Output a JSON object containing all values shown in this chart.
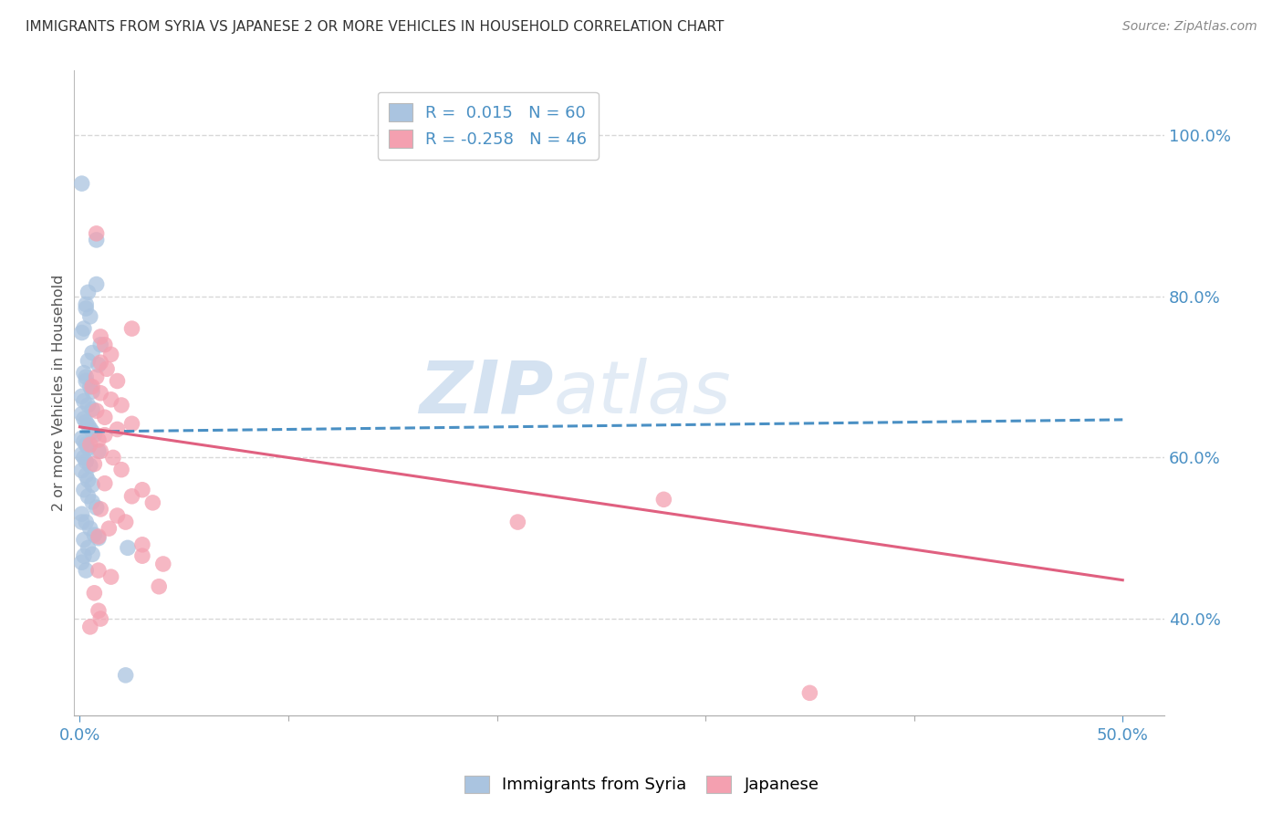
{
  "title": "IMMIGRANTS FROM SYRIA VS JAPANESE 2 OR MORE VEHICLES IN HOUSEHOLD CORRELATION CHART",
  "source": "Source: ZipAtlas.com",
  "ylabel": "2 or more Vehicles in Household",
  "y_ticks": [
    0.4,
    0.6,
    0.8,
    1.0
  ],
  "y_tick_labels": [
    "40.0%",
    "60.0%",
    "80.0%",
    "100.0%"
  ],
  "xlim": [
    -0.003,
    0.52
  ],
  "ylim": [
    0.28,
    1.08
  ],
  "blue_R": 0.015,
  "blue_N": 60,
  "pink_R": -0.258,
  "pink_N": 46,
  "legend_label_blue": "Immigrants from Syria",
  "legend_label_pink": "Japanese",
  "blue_color": "#aac4e0",
  "pink_color": "#f4a0b0",
  "blue_line_color": "#4a90c4",
  "pink_line_color": "#e06080",
  "blue_scatter": [
    [
      0.001,
      0.94
    ],
    [
      0.008,
      0.87
    ],
    [
      0.008,
      0.815
    ],
    [
      0.004,
      0.805
    ],
    [
      0.003,
      0.79
    ],
    [
      0.003,
      0.785
    ],
    [
      0.005,
      0.775
    ],
    [
      0.002,
      0.76
    ],
    [
      0.001,
      0.755
    ],
    [
      0.01,
      0.74
    ],
    [
      0.006,
      0.73
    ],
    [
      0.004,
      0.72
    ],
    [
      0.009,
      0.715
    ],
    [
      0.002,
      0.705
    ],
    [
      0.003,
      0.7
    ],
    [
      0.003,
      0.695
    ],
    [
      0.005,
      0.688
    ],
    [
      0.006,
      0.682
    ],
    [
      0.001,
      0.676
    ],
    [
      0.002,
      0.67
    ],
    [
      0.004,
      0.665
    ],
    [
      0.006,
      0.66
    ],
    [
      0.001,
      0.654
    ],
    [
      0.002,
      0.648
    ],
    [
      0.003,
      0.644
    ],
    [
      0.004,
      0.64
    ],
    [
      0.005,
      0.636
    ],
    [
      0.006,
      0.632
    ],
    [
      0.007,
      0.628
    ],
    [
      0.001,
      0.624
    ],
    [
      0.002,
      0.62
    ],
    [
      0.003,
      0.616
    ],
    [
      0.004,
      0.612
    ],
    [
      0.009,
      0.608
    ],
    [
      0.001,
      0.604
    ],
    [
      0.002,
      0.6
    ],
    [
      0.003,
      0.595
    ],
    [
      0.005,
      0.59
    ],
    [
      0.001,
      0.584
    ],
    [
      0.003,
      0.578
    ],
    [
      0.004,
      0.572
    ],
    [
      0.006,
      0.566
    ],
    [
      0.002,
      0.56
    ],
    [
      0.004,
      0.552
    ],
    [
      0.006,
      0.545
    ],
    [
      0.008,
      0.538
    ],
    [
      0.001,
      0.53
    ],
    [
      0.003,
      0.52
    ],
    [
      0.005,
      0.512
    ],
    [
      0.007,
      0.504
    ],
    [
      0.002,
      0.498
    ],
    [
      0.004,
      0.488
    ],
    [
      0.006,
      0.48
    ],
    [
      0.001,
      0.47
    ],
    [
      0.003,
      0.46
    ],
    [
      0.023,
      0.488
    ],
    [
      0.002,
      0.478
    ],
    [
      0.009,
      0.5
    ],
    [
      0.022,
      0.33
    ],
    [
      0.001,
      0.52
    ]
  ],
  "pink_scatter": [
    [
      0.008,
      0.878
    ],
    [
      0.025,
      0.76
    ],
    [
      0.01,
      0.75
    ],
    [
      0.012,
      0.74
    ],
    [
      0.015,
      0.728
    ],
    [
      0.01,
      0.718
    ],
    [
      0.013,
      0.71
    ],
    [
      0.008,
      0.7
    ],
    [
      0.018,
      0.695
    ],
    [
      0.006,
      0.688
    ],
    [
      0.01,
      0.68
    ],
    [
      0.015,
      0.672
    ],
    [
      0.02,
      0.665
    ],
    [
      0.008,
      0.658
    ],
    [
      0.012,
      0.65
    ],
    [
      0.025,
      0.642
    ],
    [
      0.018,
      0.635
    ],
    [
      0.012,
      0.628
    ],
    [
      0.009,
      0.622
    ],
    [
      0.005,
      0.616
    ],
    [
      0.01,
      0.608
    ],
    [
      0.016,
      0.6
    ],
    [
      0.007,
      0.592
    ],
    [
      0.02,
      0.585
    ],
    [
      0.012,
      0.568
    ],
    [
      0.03,
      0.56
    ],
    [
      0.025,
      0.552
    ],
    [
      0.035,
      0.544
    ],
    [
      0.01,
      0.536
    ],
    [
      0.018,
      0.528
    ],
    [
      0.022,
      0.52
    ],
    [
      0.014,
      0.512
    ],
    [
      0.009,
      0.502
    ],
    [
      0.03,
      0.492
    ],
    [
      0.03,
      0.478
    ],
    [
      0.04,
      0.468
    ],
    [
      0.009,
      0.46
    ],
    [
      0.015,
      0.452
    ],
    [
      0.038,
      0.44
    ],
    [
      0.007,
      0.432
    ],
    [
      0.009,
      0.41
    ],
    [
      0.01,
      0.4
    ],
    [
      0.005,
      0.39
    ],
    [
      0.28,
      0.548
    ],
    [
      0.21,
      0.52
    ],
    [
      0.35,
      0.308
    ]
  ],
  "blue_line_x": [
    0.0,
    0.5
  ],
  "blue_line_y": [
    0.632,
    0.647
  ],
  "pink_line_x": [
    0.0,
    0.5
  ],
  "pink_line_y": [
    0.638,
    0.448
  ],
  "watermark_zip": "ZIP",
  "watermark_atlas": "atlas",
  "background_color": "#ffffff",
  "grid_color": "#d8d8d8",
  "title_color": "#333333",
  "right_axis_color": "#4a90c4",
  "xlabel_color": "#4a90c4"
}
